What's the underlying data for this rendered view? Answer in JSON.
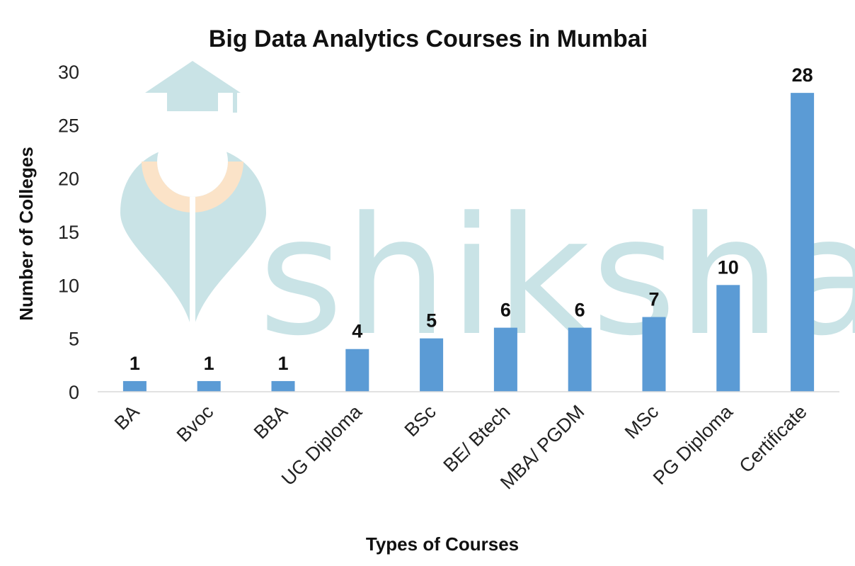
{
  "watermark": {
    "text": "shiksha",
    "color": "#c9e3e6",
    "accent": "#fbe3c8"
  },
  "chart_data": {
    "type": "bar",
    "title": "Big Data Analytics Courses in Mumbai",
    "xlabel": "Types of Courses",
    "ylabel": "Number of Colleges",
    "categories": [
      "BA",
      "Bvoc",
      "BBA",
      "UG Diploma",
      "BSc",
      "BE/ Btech",
      "MBA/ PGDM",
      "MSc",
      "PG Diploma",
      "Certificate"
    ],
    "values": [
      1,
      1,
      1,
      4,
      5,
      6,
      6,
      7,
      10,
      28
    ],
    "ylim": [
      0,
      30
    ],
    "yticks": [
      0,
      5,
      10,
      15,
      20,
      25,
      30
    ],
    "bar_color": "#5b9bd5",
    "grid": false,
    "legend": "none",
    "data_labels": true
  }
}
